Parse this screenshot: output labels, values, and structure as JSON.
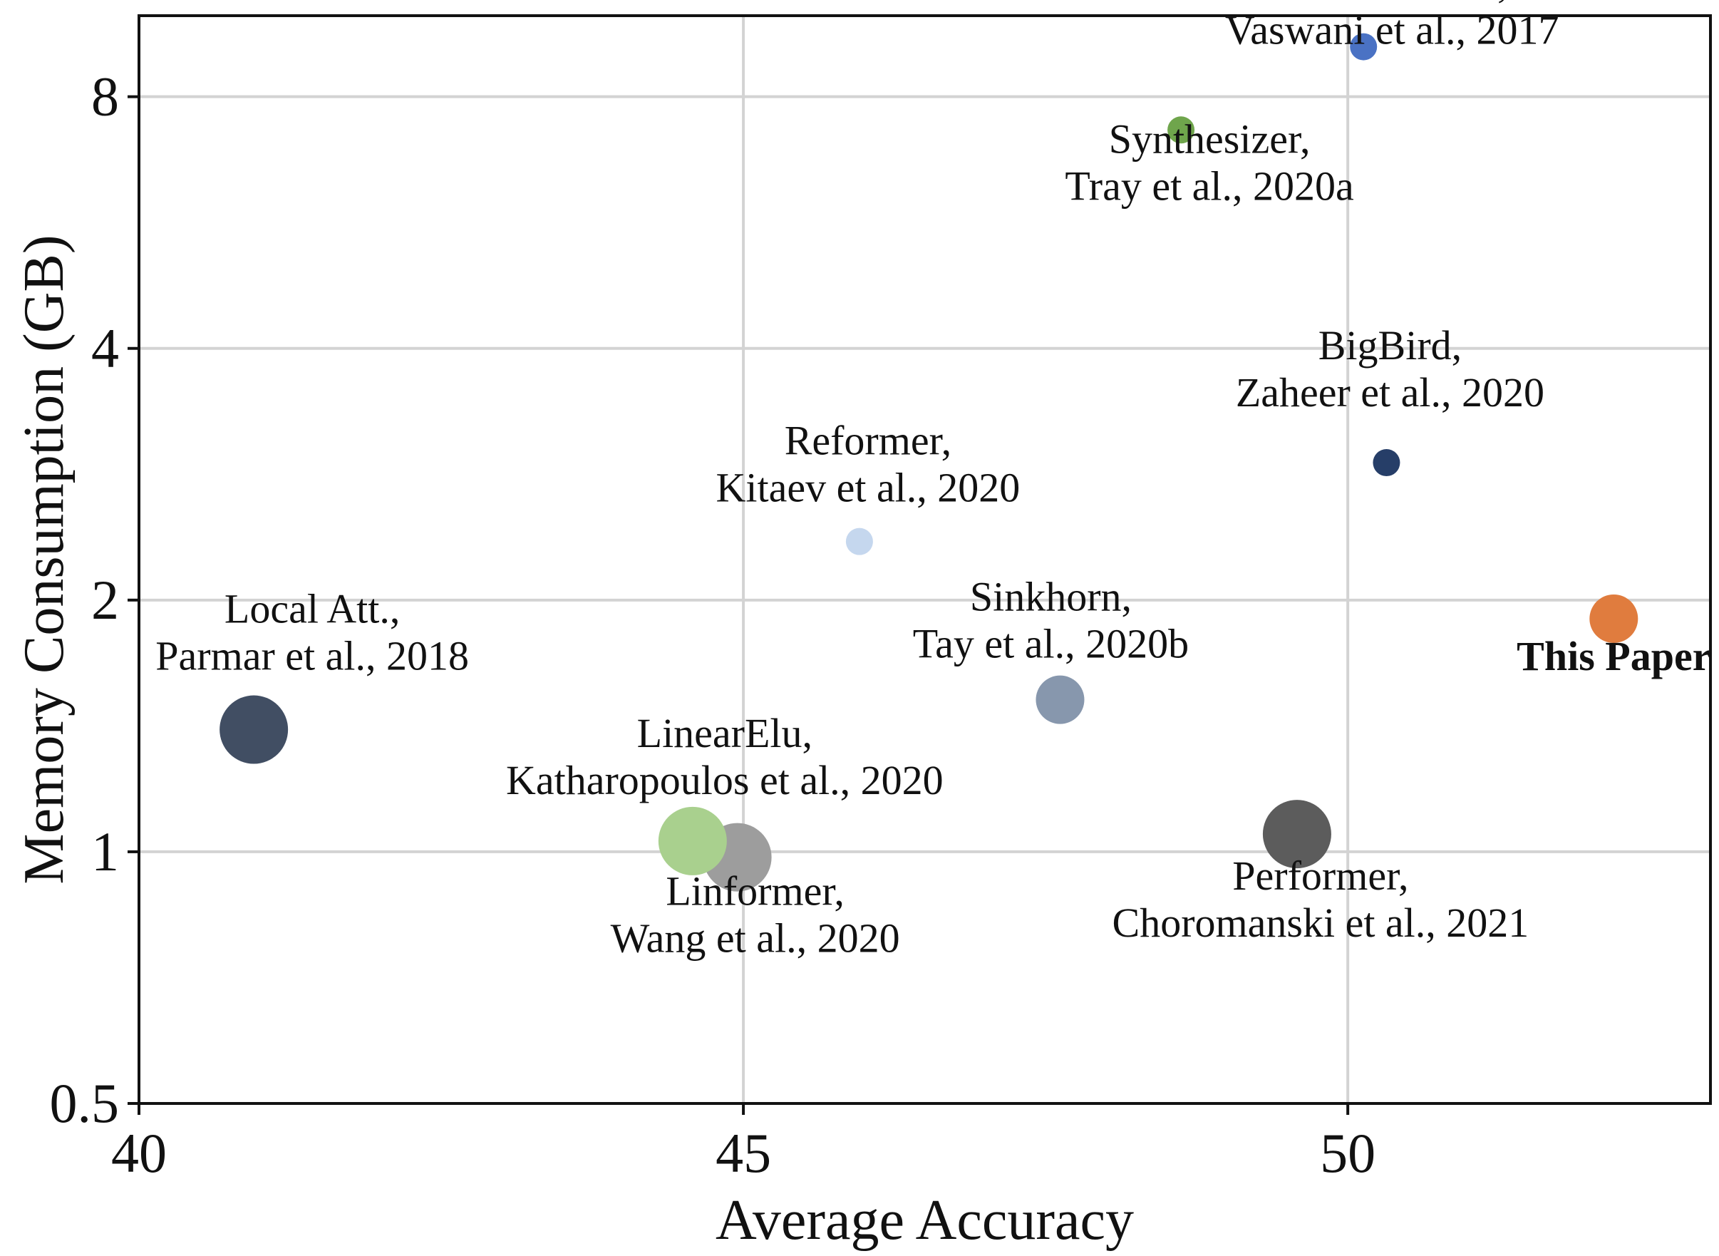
{
  "chart_data": {
    "type": "scatter",
    "xlabel": "Average Accuracy",
    "ylabel": "Memory Consumption (GB)",
    "xlim": [
      40,
      53
    ],
    "ylim": [
      0.5,
      10
    ],
    "yscale": "log2",
    "xticks": [
      40,
      45,
      50
    ],
    "xtick_labels": [
      "40",
      "45",
      "50"
    ],
    "yticks": [
      0.5,
      1,
      2,
      4,
      8
    ],
    "ytick_labels": [
      "0.5",
      "1",
      "2",
      "4",
      "8"
    ],
    "grid": true,
    "points": [
      {
        "label": [
          "Transformers,",
          "Vaswani et al., 2017"
        ],
        "x": 50.13,
        "y": 9.18,
        "color": "#4a72c4",
        "size": "small"
      },
      {
        "label": [
          "Synthesizer,",
          "Tray et al., 2020a"
        ],
        "x": 48.62,
        "y": 7.3,
        "color": "#6fa54c",
        "size": "small"
      },
      {
        "label": [
          "BigBird,",
          "Zaheer et al., 2020"
        ],
        "x": 50.32,
        "y": 2.92,
        "color": "#263e68",
        "size": "small"
      },
      {
        "label": [
          "Reformer,",
          "Kitaev et al., 2020"
        ],
        "x": 45.96,
        "y": 2.35,
        "color": "#c5d7ee",
        "size": "small"
      },
      {
        "label": [
          "This Paper"
        ],
        "x": 52.2,
        "y": 1.9,
        "color": "#e07c3e",
        "size": "medium",
        "bold": true
      },
      {
        "label": [
          "Sinkhorn,",
          "Tay et al., 2020b"
        ],
        "x": 47.62,
        "y": 1.52,
        "color": "#8797ad",
        "size": "medium"
      },
      {
        "label": [
          "Local Att.,",
          "Parmar et al., 2018"
        ],
        "x": 40.95,
        "y": 1.4,
        "color": "#414e63",
        "size": "large"
      },
      {
        "label": [
          "LinearElu,",
          "Katharopoulos et al., 2020"
        ],
        "x": 44.58,
        "y": 1.03,
        "color": "#a9d08e",
        "size": "large"
      },
      {
        "label": [
          "Linformer,",
          "Wang et al., 2020"
        ],
        "x": 44.95,
        "y": 0.985,
        "color": "#9d9d9d",
        "size": "large"
      },
      {
        "label": [
          "Performer,",
          "Choromanski et al., 2021"
        ],
        "x": 49.58,
        "y": 1.05,
        "color": "#5c5c5c",
        "size": "large"
      }
    ]
  }
}
